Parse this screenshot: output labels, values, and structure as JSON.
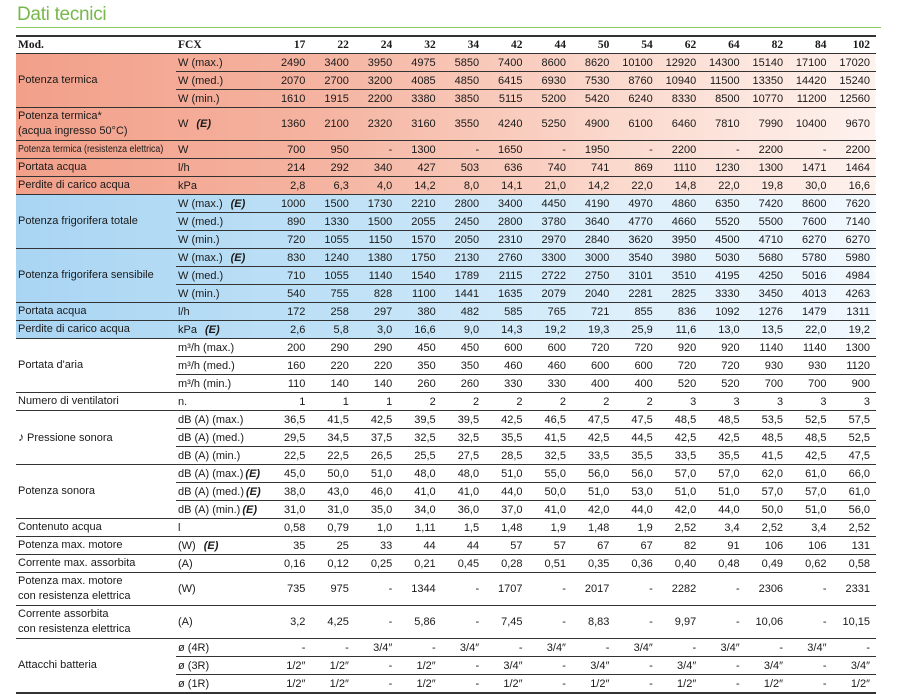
{
  "title": "Dati tecnici",
  "header": {
    "mod": "Mod.",
    "fcx": "FCX",
    "models": [
      "17",
      "22",
      "24",
      "32",
      "34",
      "42",
      "44",
      "50",
      "54",
      "62",
      "64",
      "82",
      "84",
      "102"
    ]
  },
  "colors": {
    "title": "#76b94a",
    "heating_bg": "#f4a58e",
    "cooling_bg": "#acd7f4"
  },
  "groups": [
    {
      "label": "Potenza termica",
      "theme": "red",
      "rows": [
        {
          "unit": "W (max.)",
          "values": [
            "2490",
            "3400",
            "3950",
            "4975",
            "5850",
            "7400",
            "8600",
            "8620",
            "10100",
            "12920",
            "14300",
            "15140",
            "17100",
            "17020"
          ]
        },
        {
          "unit": "W (med.)",
          "values": [
            "2070",
            "2700",
            "3200",
            "4085",
            "4850",
            "6415",
            "6930",
            "7530",
            "8760",
            "10940",
            "11500",
            "13350",
            "14420",
            "15240"
          ]
        },
        {
          "unit": "W (min.)",
          "values": [
            "1610",
            "1915",
            "2200",
            "3380",
            "3850",
            "5115",
            "5200",
            "5420",
            "6240",
            "8330",
            "8500",
            "10770",
            "11200",
            "12560"
          ]
        }
      ]
    },
    {
      "label": "Potenza termica*",
      "label2": "(acqua ingresso 50°C)",
      "theme": "red",
      "tall": true,
      "rows": [
        {
          "unit": "W",
          "note": "(E)",
          "values": [
            "1360",
            "2100",
            "2320",
            "3160",
            "3550",
            "4240",
            "5250",
            "4900",
            "6100",
            "6460",
            "7810",
            "7990",
            "10400",
            "9670"
          ]
        }
      ]
    },
    {
      "label": "Potenza termica (resistenza elettrica)",
      "small": true,
      "theme": "red",
      "rows": [
        {
          "unit": "W",
          "values": [
            "700",
            "950",
            "-",
            "1300",
            "-",
            "1650",
            "-",
            "1950",
            "-",
            "2200",
            "-",
            "2200",
            "-",
            "2200"
          ]
        }
      ]
    },
    {
      "label": "Portata acqua",
      "theme": "red",
      "rows": [
        {
          "unit": "l/h",
          "values": [
            "214",
            "292",
            "340",
            "427",
            "503",
            "636",
            "740",
            "741",
            "869",
            "1110",
            "1230",
            "1300",
            "1471",
            "1464"
          ]
        }
      ]
    },
    {
      "label": "Perdite di carico acqua",
      "theme": "red",
      "rows": [
        {
          "unit": "kPa",
          "values": [
            "2,8",
            "6,3",
            "4,0",
            "14,2",
            "8,0",
            "14,1",
            "21,0",
            "14,2",
            "22,0",
            "14,8",
            "22,0",
            "19,8",
            "30,0",
            "16,6"
          ]
        }
      ]
    },
    {
      "label": "Potenza frigorifera totale",
      "theme": "blue",
      "rows": [
        {
          "unit": "W (max.)",
          "note": "(E)",
          "values": [
            "1000",
            "1500",
            "1730",
            "2210",
            "2800",
            "3400",
            "4450",
            "4190",
            "4970",
            "4860",
            "6350",
            "7420",
            "8600",
            "7620"
          ]
        },
        {
          "unit": "W (med.)",
          "values": [
            "890",
            "1330",
            "1500",
            "2055",
            "2450",
            "2800",
            "3780",
            "3640",
            "4770",
            "4660",
            "5520",
            "5500",
            "7600",
            "7140"
          ]
        },
        {
          "unit": "W (min.)",
          "values": [
            "720",
            "1055",
            "1150",
            "1570",
            "2050",
            "2310",
            "2970",
            "2840",
            "3620",
            "3950",
            "4500",
            "4710",
            "6270",
            "6270"
          ]
        }
      ]
    },
    {
      "label": "Potenza frigorifera sensibile",
      "theme": "blue",
      "rows": [
        {
          "unit": "W (max.)",
          "note": "(E)",
          "values": [
            "830",
            "1240",
            "1380",
            "1750",
            "2130",
            "2760",
            "3300",
            "3000",
            "3540",
            "3980",
            "5030",
            "5680",
            "5780",
            "5980"
          ]
        },
        {
          "unit": "W (med.)",
          "values": [
            "710",
            "1055",
            "1140",
            "1540",
            "1789",
            "2115",
            "2722",
            "2750",
            "3101",
            "3510",
            "4195",
            "4250",
            "5016",
            "4984"
          ]
        },
        {
          "unit": "W (min.)",
          "values": [
            "540",
            "755",
            "828",
            "1100",
            "1441",
            "1635",
            "2079",
            "2040",
            "2281",
            "2825",
            "3330",
            "3450",
            "4013",
            "4263"
          ]
        }
      ]
    },
    {
      "label": "Portata acqua",
      "theme": "blue",
      "rows": [
        {
          "unit": "l/h",
          "values": [
            "172",
            "258",
            "297",
            "380",
            "482",
            "585",
            "765",
            "721",
            "855",
            "836",
            "1092",
            "1276",
            "1479",
            "1311"
          ]
        }
      ]
    },
    {
      "label": "Perdite di carico acqua",
      "theme": "blue",
      "rows": [
        {
          "unit": "kPa",
          "note": "(E)",
          "values": [
            "2,6",
            "5,8",
            "3,0",
            "16,6",
            "9,0",
            "14,3",
            "19,2",
            "19,3",
            "25,9",
            "11,6",
            "13,0",
            "13,5",
            "22,0",
            "19,2"
          ]
        }
      ]
    },
    {
      "label": "Portata d'aria",
      "rows": [
        {
          "unit": "m³/h (max.)",
          "values": [
            "200",
            "290",
            "290",
            "450",
            "450",
            "600",
            "600",
            "720",
            "720",
            "920",
            "920",
            "1140",
            "1140",
            "1300"
          ]
        },
        {
          "unit": "m³/h (med.)",
          "values": [
            "160",
            "220",
            "220",
            "350",
            "350",
            "460",
            "460",
            "600",
            "600",
            "720",
            "720",
            "930",
            "930",
            "1120"
          ]
        },
        {
          "unit": "m³/h (min.)",
          "values": [
            "110",
            "140",
            "140",
            "260",
            "260",
            "330",
            "330",
            "400",
            "400",
            "520",
            "520",
            "700",
            "700",
            "900"
          ]
        }
      ]
    },
    {
      "label": "Numero di ventilatori",
      "rows": [
        {
          "unit": "n.",
          "values": [
            "1",
            "1",
            "1",
            "2",
            "2",
            "2",
            "2",
            "2",
            "2",
            "3",
            "3",
            "3",
            "3",
            "3"
          ]
        }
      ]
    },
    {
      "label": "Pressione sonora",
      "icon": "music-note-icon",
      "rows": [
        {
          "unit": "dB (A) (max.)",
          "values": [
            "36,5",
            "41,5",
            "42,5",
            "39,5",
            "39,5",
            "42,5",
            "46,5",
            "47,5",
            "47,5",
            "48,5",
            "48,5",
            "53,5",
            "52,5",
            "57,5"
          ]
        },
        {
          "unit": "dB (A) (med.)",
          "values": [
            "29,5",
            "34,5",
            "37,5",
            "32,5",
            "32,5",
            "35,5",
            "41,5",
            "42,5",
            "44,5",
            "42,5",
            "42,5",
            "48,5",
            "48,5",
            "52,5"
          ]
        },
        {
          "unit": "dB (A) (min.)",
          "values": [
            "22,5",
            "22,5",
            "26,5",
            "25,5",
            "27,5",
            "28,5",
            "32,5",
            "33,5",
            "35,5",
            "33,5",
            "35,5",
            "41,5",
            "42,5",
            "47,5"
          ]
        }
      ]
    },
    {
      "label": "Potenza sonora",
      "rows": [
        {
          "unit": "dB (A) (max.)",
          "note": "(E)",
          "tight": true,
          "values": [
            "45,0",
            "50,0",
            "51,0",
            "48,0",
            "48,0",
            "51,0",
            "55,0",
            "56,0",
            "56,0",
            "57,0",
            "57,0",
            "62,0",
            "61,0",
            "66,0"
          ]
        },
        {
          "unit": "dB (A) (med.)",
          "note": "(E)",
          "tight": true,
          "values": [
            "38,0",
            "43,0",
            "46,0",
            "41,0",
            "41,0",
            "44,0",
            "50,0",
            "51,0",
            "53,0",
            "51,0",
            "51,0",
            "57,0",
            "57,0",
            "61,0"
          ]
        },
        {
          "unit": "dB (A) (min.)",
          "note": "(E)",
          "tight": true,
          "values": [
            "31,0",
            "31,0",
            "35,0",
            "34,0",
            "36,0",
            "37,0",
            "41,0",
            "42,0",
            "44,0",
            "42,0",
            "44,0",
            "50,0",
            "51,0",
            "56,0"
          ]
        }
      ]
    },
    {
      "label": "Contenuto acqua",
      "rows": [
        {
          "unit": "l",
          "values": [
            "0,58",
            "0,79",
            "1,0",
            "1,11",
            "1,5",
            "1,48",
            "1,9",
            "1,48",
            "1,9",
            "2,52",
            "3,4",
            "2,52",
            "3,4",
            "2,52"
          ]
        }
      ]
    },
    {
      "label": "Potenza max. motore",
      "rows": [
        {
          "unit": "(W)",
          "note": "(E)",
          "values": [
            "35",
            "25",
            "33",
            "44",
            "44",
            "57",
            "57",
            "67",
            "67",
            "82",
            "91",
            "106",
            "106",
            "131"
          ]
        }
      ]
    },
    {
      "label": "Corrente max. assorbita",
      "rows": [
        {
          "unit": "(A)",
          "values": [
            "0,16",
            "0,12",
            "0,25",
            "0,21",
            "0,45",
            "0,28",
            "0,51",
            "0,35",
            "0,36",
            "0,40",
            "0,48",
            "0,49",
            "0,62",
            "0,58"
          ]
        }
      ]
    },
    {
      "label": "Potenza max. motore",
      "label2": "con resistenza elettrica",
      "tall": true,
      "rows": [
        {
          "unit": "(W)",
          "values": [
            "735",
            "975",
            "-",
            "1344",
            "-",
            "1707",
            "-",
            "2017",
            "-",
            "2282",
            "-",
            "2306",
            "-",
            "2331"
          ]
        }
      ]
    },
    {
      "label": "Corrente assorbita",
      "label2": "con resistenza elettrica",
      "tall": true,
      "rows": [
        {
          "unit": "(A)",
          "values": [
            "3,2",
            "4,25",
            "-",
            "5,86",
            "-",
            "7,45",
            "-",
            "8,83",
            "-",
            "9,97",
            "-",
            "10,06",
            "-",
            "10,15"
          ]
        }
      ]
    },
    {
      "label": "Attacchi batteria",
      "rows": [
        {
          "unit": "ø (4R)",
          "values": [
            "-",
            "-",
            "3/4″",
            "-",
            "3/4″",
            "-",
            "3/4″",
            "-",
            "3/4″",
            "-",
            "3/4″",
            "-",
            "3/4″",
            "-"
          ]
        },
        {
          "unit": "ø (3R)",
          "values": [
            "1/2″",
            "1/2″",
            "-",
            "1/2″",
            "-",
            "3/4″",
            "-",
            "3/4″",
            "-",
            "3/4″",
            "-",
            "3/4″",
            "-",
            "3/4″"
          ]
        },
        {
          "unit": "ø (1R)",
          "values": [
            "1/2″",
            "1/2″",
            "-",
            "1/2″",
            "-",
            "1/2″",
            "-",
            "1/2″",
            "-",
            "1/2″",
            "-",
            "1/2″",
            "-",
            "1/2″"
          ]
        }
      ]
    }
  ]
}
